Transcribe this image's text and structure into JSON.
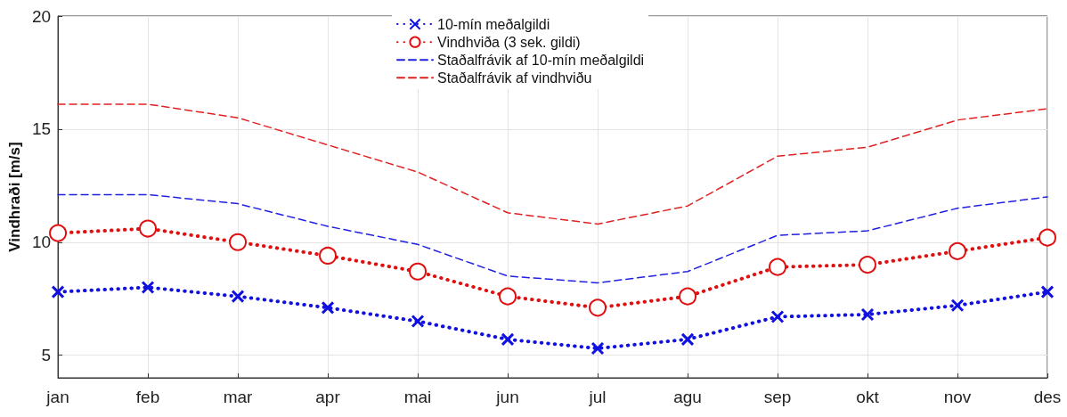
{
  "chart_data": {
    "type": "line",
    "ylabel": "Vindhraði [m/s]",
    "categories": [
      "jan",
      "feb",
      "mar",
      "apr",
      "mai",
      "jun",
      "jul",
      "agu",
      "sep",
      "okt",
      "nov",
      "des"
    ],
    "series": [
      {
        "name": "10-mín meðalgildi",
        "color": "#1010e0",
        "marker": "cross",
        "line_style": "dotted",
        "values": [
          7.8,
          8.0,
          7.6,
          7.1,
          6.5,
          5.7,
          5.3,
          5.7,
          6.7,
          6.8,
          7.2,
          7.8
        ]
      },
      {
        "name": "Vindhviða (3 sek. gildi)",
        "color": "#e01010",
        "marker": "circle",
        "line_style": "dotted",
        "values": [
          10.4,
          10.6,
          10.0,
          9.4,
          8.7,
          7.6,
          7.1,
          7.6,
          8.9,
          9.0,
          9.6,
          10.2
        ]
      },
      {
        "name": "Staðalfrávik af 10-mín meðalgildi",
        "color": "#2020e0",
        "marker": "none",
        "line_style": "dashed",
        "values": [
          12.1,
          12.1,
          11.7,
          10.7,
          9.9,
          8.5,
          8.2,
          8.7,
          10.3,
          10.5,
          11.5,
          12.0
        ]
      },
      {
        "name": "Staðalfrávik af vindhviðu",
        "color": "#e02020",
        "marker": "none",
        "line_style": "dashed",
        "values": [
          16.1,
          16.1,
          15.5,
          14.3,
          13.1,
          11.3,
          10.8,
          11.6,
          13.8,
          14.2,
          15.4,
          15.9
        ]
      }
    ],
    "ylim": [
      4,
      20
    ],
    "yticks": [
      5,
      10,
      15,
      20
    ],
    "grid": true,
    "legend": "top"
  }
}
